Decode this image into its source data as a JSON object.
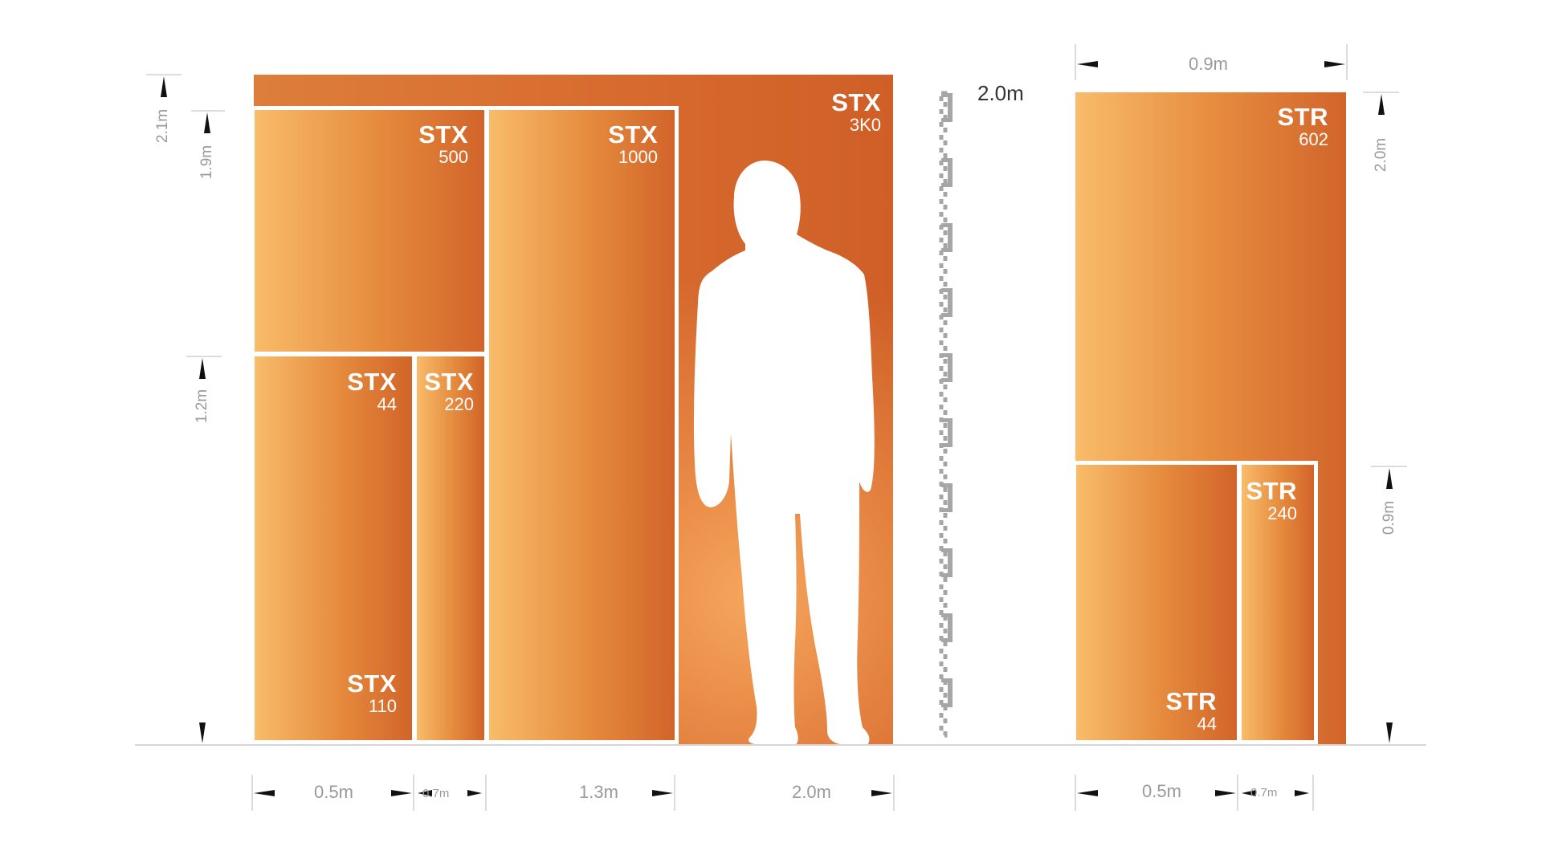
{
  "units": {
    "stx_3k0": {
      "name": "STX",
      "num": "3K0"
    },
    "stx_500": {
      "name": "STX",
      "num": "500"
    },
    "stx_1000": {
      "name": "STX",
      "num": "1000"
    },
    "stx_44": {
      "name": "STX",
      "num": "44"
    },
    "stx_220": {
      "name": "STX",
      "num": "220"
    },
    "stx_110": {
      "name": "STX",
      "num": "110"
    },
    "str_602": {
      "name": "STR",
      "num": "602"
    },
    "str_240": {
      "name": "STR",
      "num": "240"
    },
    "str_44": {
      "name": "STR",
      "num": "44"
    }
  },
  "dimensions": {
    "width_0_5m": "0.5m",
    "width_0_7m": "0.7m",
    "width_1_3m": "1.3m",
    "width_2_0m": "2.0m",
    "height_2_1m": "2.1m",
    "height_1_9m": "1.9m",
    "height_1_2m": "1.2m",
    "ruler_2_0m": "2.0m",
    "str_width_0_9m": "0.9m",
    "str_height_2_0m": "2.0m",
    "str_height_0_9m": "0.9m",
    "str_width_0_5m": "0.5m",
    "str_width_0_7m": "0.7m"
  },
  "colors": {
    "gradient_light": "#f8bc6a",
    "gradient_dark": "#d2642a",
    "dimension_text": "#9a9a9a",
    "outline": "#ffffff"
  }
}
